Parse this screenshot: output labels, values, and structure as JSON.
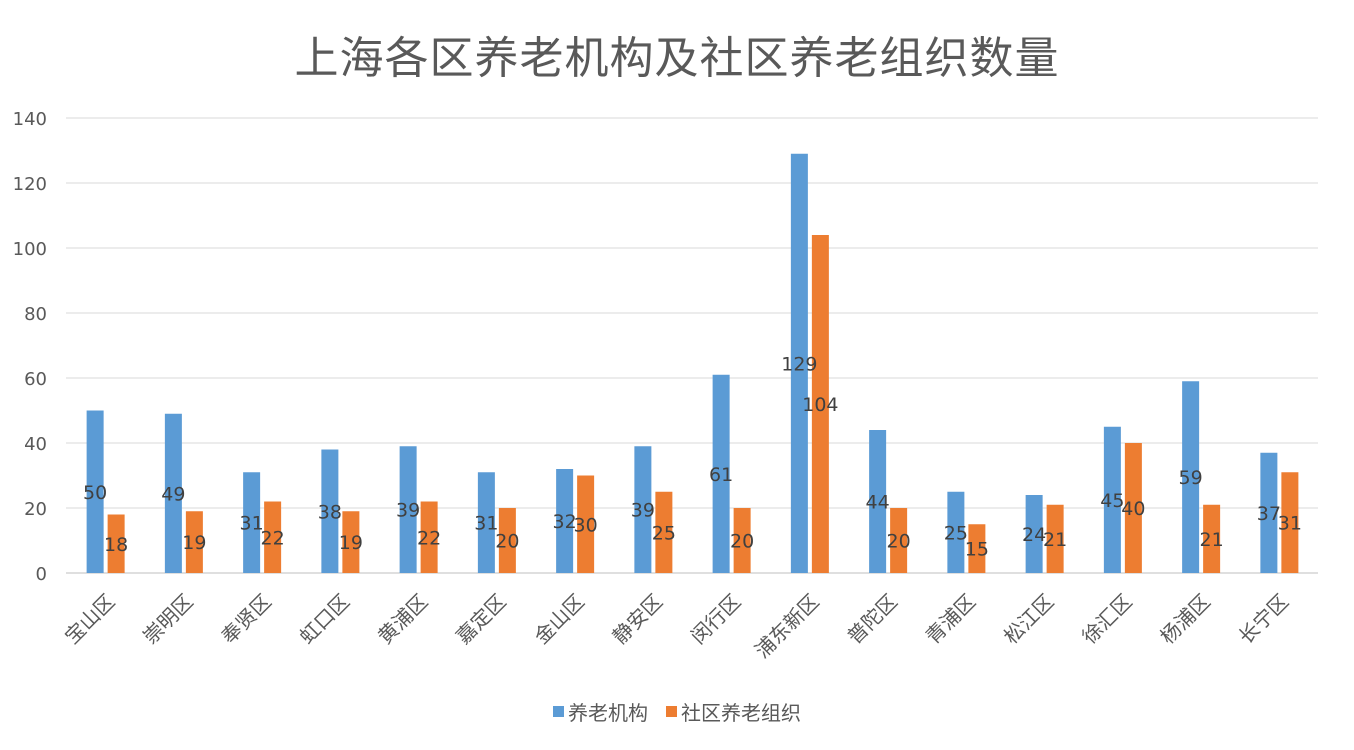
{
  "chart_data": {
    "type": "bar",
    "title": "上海各区养老机构及社区养老组织数量",
    "categories": [
      "宝山区",
      "崇明区",
      "奉贤区",
      "虹口区",
      "黄浦区",
      "嘉定区",
      "金山区",
      "静安区",
      "闵行区",
      "浦东新区",
      "普陀区",
      "青浦区",
      "松江区",
      "徐汇区",
      "杨浦区",
      "长宁区"
    ],
    "series": [
      {
        "name": "养老机构",
        "color": "#5B9BD5",
        "values": [
          50,
          49,
          31,
          38,
          39,
          31,
          32,
          39,
          61,
          129,
          44,
          25,
          24,
          45,
          59,
          37
        ]
      },
      {
        "name": "社区养老组织",
        "color": "#ED7D31",
        "values": [
          18,
          19,
          22,
          19,
          22,
          20,
          30,
          25,
          20,
          104,
          20,
          15,
          21,
          40,
          21,
          31
        ]
      }
    ],
    "ylim": [
      0,
      140
    ],
    "yticks": [
      0,
      20,
      40,
      60,
      80,
      100,
      120,
      140
    ],
    "grid": true,
    "legend_position": "bottom",
    "data_labels": true
  }
}
